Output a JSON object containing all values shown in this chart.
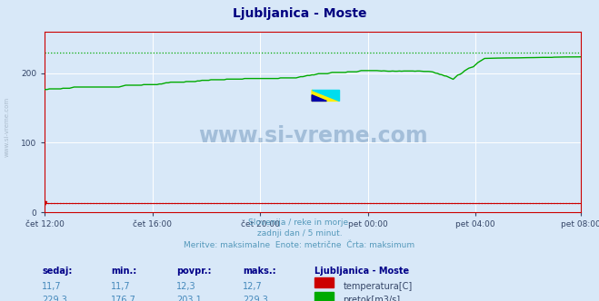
{
  "title": "Ljubljanica - Moste",
  "title_color": "#000080",
  "bg_color": "#d8e8f8",
  "plot_bg_color": "#d8e8f8",
  "grid_color": "#ffffff",
  "x_tick_labels": [
    "čet 12:00",
    "čet 16:00",
    "čet 20:00",
    "pet 00:00",
    "pet 04:00",
    "pet 08:00"
  ],
  "x_tick_positions": [
    0,
    48,
    96,
    144,
    192,
    239
  ],
  "y_ticks": [
    0,
    100,
    200
  ],
  "ylim": [
    0,
    260
  ],
  "xlim": [
    0,
    239
  ],
  "watermark": "www.si-vreme.com",
  "subtitle_lines": [
    "Slovenija / reke in morje.",
    "zadnji dan / 5 minut.",
    "Meritve: maksimalne  Enote: metrične  Črta: maksimum"
  ],
  "subtitle_color": "#5599bb",
  "table_headers": [
    "sedaj:",
    "min.:",
    "povpr.:",
    "maks.:"
  ],
  "table_row1_vals": [
    "11,7",
    "11,7",
    "12,3",
    "12,7"
  ],
  "table_row2_vals": [
    "229,3",
    "176,7",
    "203,1",
    "229,3"
  ],
  "legend_label1": "temperatura[C]",
  "legend_label2": "pretok[m3/s]",
  "legend_color1": "#cc0000",
  "legend_color2": "#00aa00",
  "legend_title": "Ljubljanica - Moste",
  "sidebar_text": "www.si-vreme.com",
  "sidebar_color": "#aabbcc",
  "green_dotted_y": 229.3,
  "red_dotted_y": 12.7,
  "flow_start": 176.7,
  "flow_end": 229.3,
  "temp_val": 12.7,
  "n_points": 240
}
